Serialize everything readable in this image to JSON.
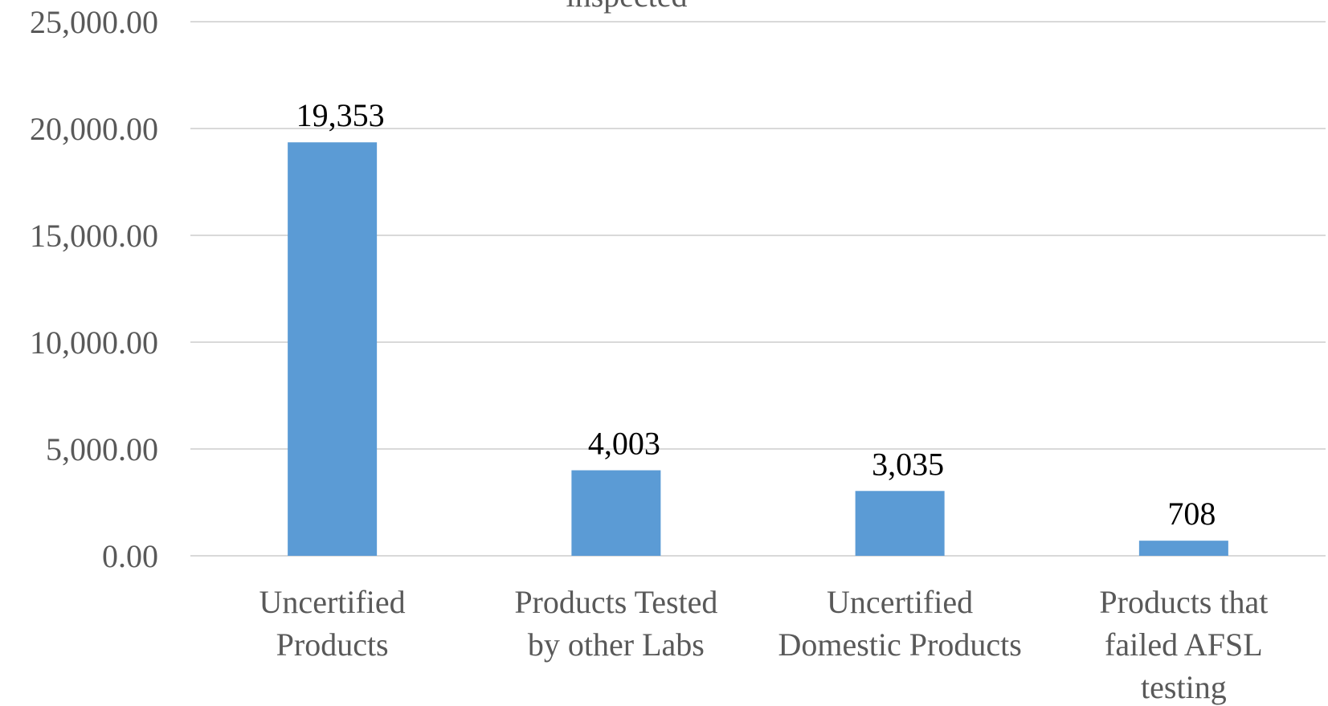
{
  "chart_data": {
    "type": "bar",
    "title": "inspected",
    "categories": [
      [
        "Uncertified",
        "Products"
      ],
      [
        "Products Tested",
        "by other Labs"
      ],
      [
        "Uncertified",
        "Domestic Products"
      ],
      [
        "Products that",
        "failed AFSL",
        "testing"
      ]
    ],
    "values": [
      19353,
      4003,
      3035,
      708
    ],
    "data_labels": [
      "19,353",
      "4,003",
      "3,035",
      "708"
    ],
    "y_ticks": [
      0,
      5000,
      10000,
      15000,
      20000,
      25000
    ],
    "y_tick_labels": [
      "0.00",
      "5,000.00",
      "10,000.00",
      "15,000.00",
      "20,000.00",
      "25,000.00"
    ],
    "ylim": [
      0,
      25000
    ],
    "grid": true,
    "legend": "none",
    "bar_color": "#5b9bd5",
    "grid_color": "#d9d9d9"
  }
}
